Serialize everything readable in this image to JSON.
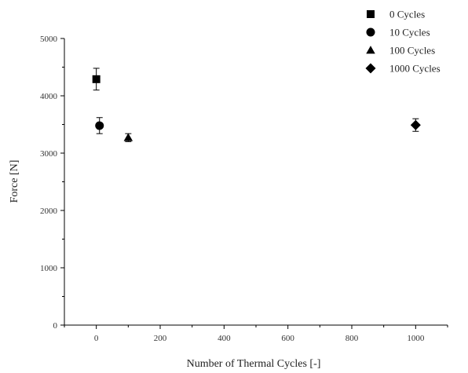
{
  "chart_data": {
    "type": "scatter",
    "xlabel": "Number of Thermal Cycles [-]",
    "ylabel": "Force [N]",
    "xlim": [
      -100,
      1100
    ],
    "ylim": [
      0,
      5000
    ],
    "xticks": [
      0,
      200,
      400,
      600,
      800,
      1000
    ],
    "yticks": [
      0,
      1000,
      2000,
      3000,
      4000,
      5000
    ],
    "grid": false,
    "legend_position": "top-right",
    "series": [
      {
        "name": "0 Cycles",
        "marker": "square",
        "x": 0,
        "y": 4290,
        "err": 190
      },
      {
        "name": "10 Cycles",
        "marker": "circle",
        "x": 10,
        "y": 3480,
        "err": 140
      },
      {
        "name": "100 Cycles",
        "marker": "triangle",
        "x": 100,
        "y": 3270,
        "err": 70
      },
      {
        "name": "1000 Cycles",
        "marker": "diamond",
        "x": 1000,
        "y": 3490,
        "err": 110
      }
    ]
  }
}
